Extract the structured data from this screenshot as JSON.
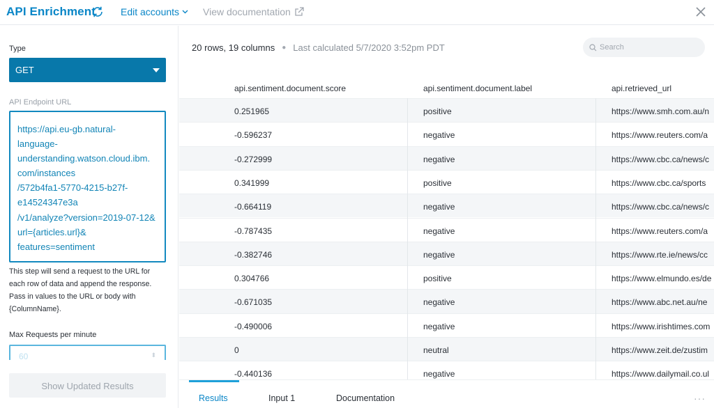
{
  "header": {
    "title": "API Enrichment",
    "edit_accounts": "Edit accounts",
    "view_documentation": "View documentation"
  },
  "sidebar": {
    "type_label": "Type",
    "type_value": "GET",
    "endpoint_label": "API Endpoint URL",
    "endpoint_value": "https://api.eu-gb.natural-\nlanguage-\nunderstanding.watson.cloud.ibm.\ncom/instances\n/572b4fa1-5770-4215-b27f-\ne14524347e3a\n/v1/analyze?version=2019-07-12&\nurl={articles.url}&\nfeatures=sentiment",
    "help_text": "This step will send a request to the URL for each row of data and append the response. Pass in values to the URL or body with {ColumnName}.",
    "max_requests_label": "Max Requests per minute",
    "max_requests_value": "60",
    "show_updated_button": "Show Updated Results"
  },
  "main": {
    "row_col_summary": "20 rows, 19 columns",
    "last_calculated": "Last calculated 5/7/2020 3:52pm PDT",
    "search_placeholder": "Search",
    "columns": [
      "api.sentiment.document.score",
      "api.sentiment.document.label",
      "api.retrieved_url"
    ],
    "rows": [
      [
        "0.251965",
        "positive",
        "https://www.smh.com.au/n"
      ],
      [
        "-0.596237",
        "negative",
        "https://www.reuters.com/a"
      ],
      [
        "-0.272999",
        "negative",
        "https://www.cbc.ca/news/c"
      ],
      [
        "0.341999",
        "positive",
        "https://www.cbc.ca/sports"
      ],
      [
        "-0.664119",
        "negative",
        "https://www.cbc.ca/news/c"
      ],
      [
        "-0.787435",
        "negative",
        "https://www.reuters.com/a"
      ],
      [
        "-0.382746",
        "negative",
        "https://www.rte.ie/news/cc"
      ],
      [
        "0.304766",
        "positive",
        "https://www.elmundo.es/de"
      ],
      [
        "-0.671035",
        "negative",
        "https://www.abc.net.au/ne"
      ],
      [
        "-0.490006",
        "negative",
        "https://www.irishtimes.com"
      ],
      [
        "0",
        "neutral",
        "https://www.zeit.de/zustim"
      ],
      [
        "-0.440136",
        "negative",
        "https://www.dailymail.co.ul"
      ]
    ],
    "tabs": [
      "Results",
      "Input 1",
      "Documentation"
    ],
    "more": "···"
  },
  "colors": {
    "accent": "#0a86c7",
    "select_bg": "#0878aa",
    "row_shade": "#f4f6f8"
  }
}
